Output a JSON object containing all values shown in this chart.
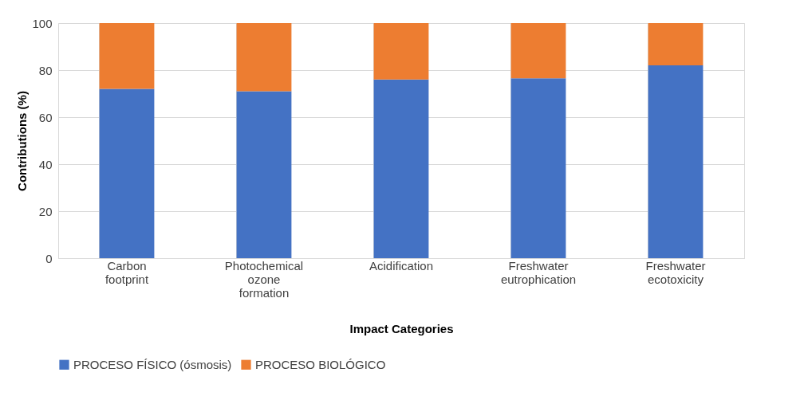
{
  "chart_data": {
    "type": "bar",
    "stacked": true,
    "xlabel": "Impact Categories",
    "ylabel": "Contributions (%)",
    "categories": [
      "Carbon footprint",
      "Photochemical ozone formation",
      "Acidification",
      "Freshwater eutrophication",
      "Freshwater ecotoxicity"
    ],
    "series": [
      {
        "name": "PROCESO FÍSICO (ósmosis)",
        "color": "#4472c4",
        "values": [
          72,
          71,
          76,
          76.5,
          82
        ]
      },
      {
        "name": "PROCESO BIOLÓGICO",
        "color": "#ed7d31",
        "values": [
          28,
          29,
          24,
          23.5,
          18
        ]
      }
    ],
    "ylim": [
      0,
      100
    ],
    "yticks": [
      0,
      20,
      40,
      60,
      80,
      100
    ],
    "grid": true,
    "legend": "bottom"
  }
}
